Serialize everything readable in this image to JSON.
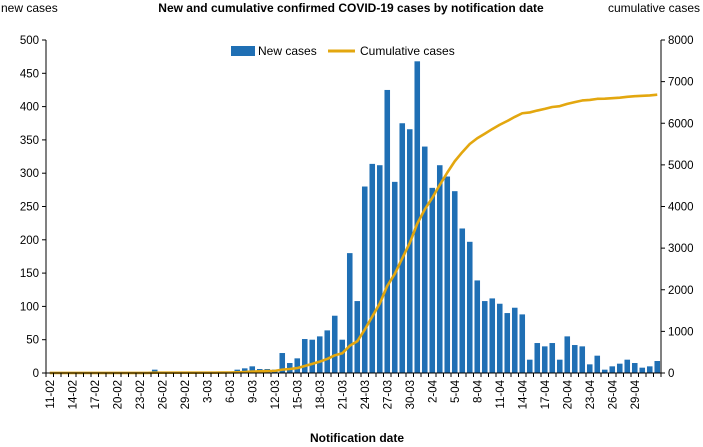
{
  "chart_data": {
    "type": "bar",
    "title": "New and cumulative confirmed COVID-19 cases by notification date",
    "xlabel": "Notification date",
    "ylabel_left": "new cases",
    "ylabel_right": "cumulative cases",
    "ylim_left": [
      0,
      500
    ],
    "ylim_right": [
      0,
      8000
    ],
    "yticks_left": [
      0,
      50,
      100,
      150,
      200,
      250,
      300,
      350,
      400,
      450,
      500
    ],
    "yticks_right": [
      0,
      1000,
      2000,
      3000,
      4000,
      5000,
      6000,
      7000,
      8000
    ],
    "x_tick_labels": [
      "11-02",
      "14-02",
      "17-02",
      "20-02",
      "23-02",
      "26-02",
      "29-02",
      "3-03",
      "6-03",
      "9-03",
      "12-03",
      "15-03",
      "18-03",
      "21-03",
      "24-03",
      "27-03",
      "30-03",
      "2-04",
      "5-04",
      "8-04",
      "11-04",
      "14-04",
      "17-04",
      "20-04",
      "23-04",
      "26-04",
      "29-04"
    ],
    "legend_position": "top",
    "series": [
      {
        "name": "New cases",
        "type": "bar",
        "color": "#1f6fb4",
        "values": [
          0,
          0,
          0,
          0,
          0,
          0,
          0,
          0,
          0,
          0,
          0,
          0,
          0,
          0,
          5,
          1,
          0,
          0,
          0,
          0,
          0,
          0,
          0,
          2,
          2,
          5,
          7,
          10,
          6,
          6,
          5,
          30,
          15,
          22,
          51,
          50,
          55,
          64,
          86,
          50,
          180,
          108,
          280,
          314,
          312,
          425,
          287,
          375,
          366,
          468,
          340,
          278,
          312,
          295,
          273,
          217,
          197,
          139,
          108,
          112,
          104,
          90,
          98,
          88,
          20,
          45,
          40,
          45,
          20,
          55,
          42,
          40,
          13,
          26,
          5,
          10,
          14,
          20,
          15,
          8,
          10,
          18
        ]
      },
      {
        "name": "Cumulative cases",
        "type": "line",
        "color": "#e3a70f",
        "values": [
          2,
          2,
          2,
          2,
          2,
          2,
          2,
          2,
          2,
          2,
          2,
          2,
          2,
          2,
          7,
          8,
          8,
          8,
          8,
          8,
          8,
          8,
          8,
          10,
          12,
          17,
          24,
          34,
          40,
          46,
          51,
          81,
          96,
          118,
          169,
          219,
          274,
          338,
          424,
          474,
          654,
          762,
          1042,
          1356,
          1668,
          2093,
          2380,
          2755,
          3121,
          3589,
          3929,
          4207,
          4519,
          4814,
          5087,
          5304,
          5501,
          5640,
          5748,
          5860,
          5964,
          6054,
          6152,
          6240,
          6260,
          6305,
          6345,
          6390,
          6410,
          6465,
          6507,
          6547,
          6560,
          6586,
          6591,
          6601,
          6615,
          6635,
          6650,
          6658,
          6668,
          6686
        ]
      }
    ]
  }
}
